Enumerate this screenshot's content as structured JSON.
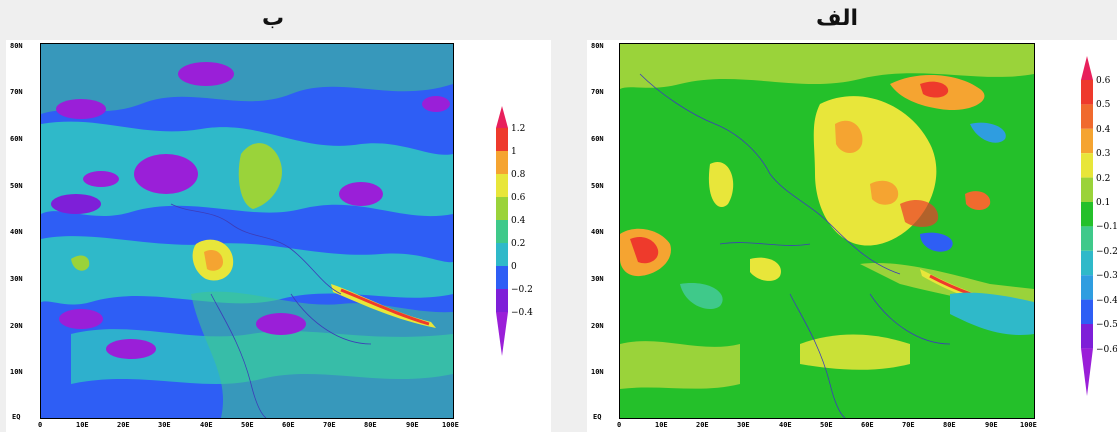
{
  "panels": [
    {
      "title": "ب",
      "lat_labels": [
        "80N",
        "70N",
        "60N",
        "50N",
        "40N",
        "30N",
        "20N",
        "10N",
        "EQ"
      ],
      "lon_labels": [
        "0",
        "10E",
        "20E",
        "30E",
        "40E",
        "50E",
        "60E",
        "70E",
        "80E",
        "90E",
        "100E"
      ],
      "colorbar": {
        "labels": [
          "1.2",
          "1",
          "0.8",
          "0.6",
          "0.4",
          "0.2",
          "0",
          "−0.2",
          "−0.4"
        ],
        "colors": [
          "#e8205c",
          "#ee3a2c",
          "#f5a431",
          "#e8e63a",
          "#9ad33a",
          "#3fc98a",
          "#2fb9c9",
          "#2e5ef5",
          "#7e1fd8",
          "#9a1fd8"
        ]
      }
    },
    {
      "title": "الف",
      "lat_labels": [
        "80N",
        "70N",
        "60N",
        "50N",
        "40N",
        "30N",
        "20N",
        "10N",
        "EQ"
      ],
      "lon_labels": [
        "0",
        "10E",
        "20E",
        "30E",
        "40E",
        "50E",
        "60E",
        "70E",
        "80E",
        "90E",
        "100E"
      ],
      "colorbar": {
        "labels": [
          "0.6",
          "0.5",
          "0.4",
          "0.3",
          "0.2",
          "0.1",
          "−0.1",
          "−0.2",
          "−0.3",
          "−0.4",
          "−0.5",
          "−0.6"
        ],
        "colors": [
          "#e8205c",
          "#ee3a2c",
          "#f06a2e",
          "#f5a431",
          "#e8e63a",
          "#9ad33a",
          "#24c02a",
          "#3fc98a",
          "#2fb9c9",
          "#2f9de0",
          "#2e5ef5",
          "#7e1fd8",
          "#9a1fd8"
        ]
      }
    }
  ]
}
